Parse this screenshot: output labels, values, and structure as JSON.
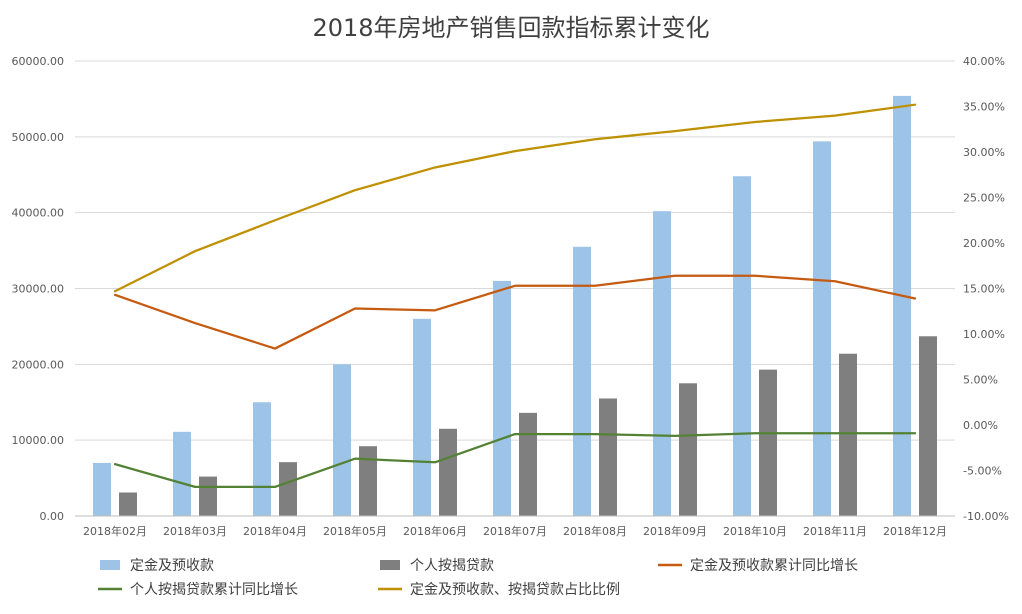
{
  "chart_data": {
    "type": "bar",
    "title": "2018年房地产销售回款指标累计变化",
    "categories": [
      "2018年02月",
      "2018年03月",
      "2018年04月",
      "2018年05月",
      "2018年06月",
      "2018年07月",
      "2018年08月",
      "2018年09月",
      "2018年10月",
      "2018年11月",
      "2018年12月"
    ],
    "y_left": {
      "min": 0,
      "max": 60000,
      "step": 10000,
      "tick_labels": [
        "0.00",
        "10000.00",
        "20000.00",
        "30000.00",
        "40000.00",
        "50000.00",
        "60000.00"
      ]
    },
    "y_right": {
      "min": -10,
      "max": 40,
      "step": 5,
      "tick_labels": [
        "-10.00%",
        "-5.00%",
        "0.00%",
        "5.00%",
        "10.00%",
        "15.00%",
        "20.00%",
        "25.00%",
        "30.00%",
        "35.00%",
        "40.00%"
      ]
    },
    "grid": true,
    "legend_position": "bottom",
    "series": [
      {
        "name": "定金及预收款",
        "kind": "bar",
        "axis": "left",
        "color": "#9dc3e6",
        "values": [
          7000,
          11100,
          15000,
          20000,
          26000,
          31000,
          35500,
          40200,
          44800,
          49400,
          55400
        ]
      },
      {
        "name": "个人按揭贷款",
        "kind": "bar",
        "axis": "left",
        "color": "#7f7f7f",
        "values": [
          3100,
          5200,
          7100,
          9200,
          11500,
          13600,
          15500,
          17500,
          19300,
          21400,
          23700
        ]
      },
      {
        "name": "定金及预收款累计同比增长",
        "kind": "line",
        "axis": "right",
        "color": "#c55a11",
        "values": [
          14.3,
          11.2,
          8.4,
          12.8,
          12.6,
          15.3,
          15.3,
          16.4,
          16.4,
          15.8,
          13.9
        ]
      },
      {
        "name": "个人按揭贷款累计同比增长",
        "kind": "line",
        "axis": "right",
        "color": "#548235",
        "values": [
          -4.3,
          -6.8,
          -6.8,
          -3.7,
          -4.1,
          -1.0,
          -1.0,
          -1.2,
          -0.9,
          -0.9,
          -0.9
        ]
      },
      {
        "name": "定金及预收款、按揭贷款占比比例",
        "kind": "line",
        "axis": "right",
        "color": "#bf9000",
        "values": [
          14.7,
          19.1,
          22.5,
          25.8,
          28.3,
          30.1,
          31.4,
          32.3,
          33.3,
          34.0,
          35.2
        ]
      }
    ]
  }
}
